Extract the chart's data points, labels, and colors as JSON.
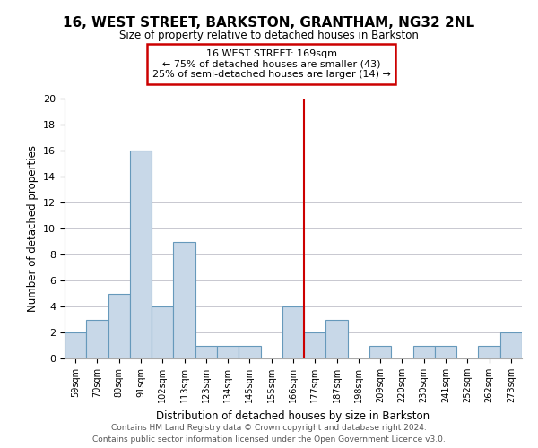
{
  "title": "16, WEST STREET, BARKSTON, GRANTHAM, NG32 2NL",
  "subtitle": "Size of property relative to detached houses in Barkston",
  "xlabel": "Distribution of detached houses by size in Barkston",
  "ylabel": "Number of detached properties",
  "bar_labels": [
    "59sqm",
    "70sqm",
    "80sqm",
    "91sqm",
    "102sqm",
    "113sqm",
    "123sqm",
    "134sqm",
    "145sqm",
    "155sqm",
    "166sqm",
    "177sqm",
    "187sqm",
    "198sqm",
    "209sqm",
    "220sqm",
    "230sqm",
    "241sqm",
    "252sqm",
    "262sqm",
    "273sqm"
  ],
  "bar_values": [
    2,
    3,
    5,
    16,
    4,
    9,
    1,
    1,
    1,
    0,
    4,
    2,
    3,
    0,
    1,
    0,
    1,
    1,
    0,
    1,
    2
  ],
  "bar_color": "#c8d8e8",
  "bar_edgecolor": "#6699bb",
  "annotation_title": "16 WEST STREET: 169sqm",
  "annotation_line1": "← 75% of detached houses are smaller (43)",
  "annotation_line2": "25% of semi-detached houses are larger (14) →",
  "annotation_box_edgecolor": "#cc0000",
  "vline_x_index": 10.5,
  "vline_color": "#cc0000",
  "ylim": [
    0,
    20
  ],
  "yticks": [
    0,
    2,
    4,
    6,
    8,
    10,
    12,
    14,
    16,
    18,
    20
  ],
  "footer_line1": "Contains HM Land Registry data © Crown copyright and database right 2024.",
  "footer_line2": "Contains public sector information licensed under the Open Government Licence v3.0.",
  "grid_color": "#c8c8d0"
}
